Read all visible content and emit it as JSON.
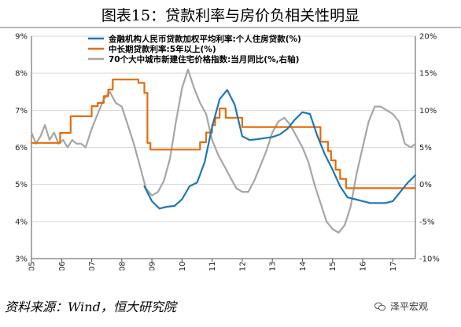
{
  "title": "图表15：贷款利率与房价负相关性明显",
  "source": "资料来源：Wind，恒大研究院",
  "brand": "泽平宏观",
  "chart_data": {
    "type": "line",
    "x_range": [
      2005.0,
      2017.75
    ],
    "x_ticks": [
      2005,
      2006,
      2007,
      2008,
      2009,
      2010,
      2011,
      2012,
      2013,
      2014,
      2015,
      2016,
      2017
    ],
    "y_left": {
      "range": [
        3,
        9
      ],
      "ticks": [
        3,
        4,
        5,
        6,
        7,
        8,
        9
      ],
      "tick_labels": [
        "3%",
        "4%",
        "5%",
        "6%",
        "7%",
        "8%",
        "9%"
      ]
    },
    "y_right": {
      "range": [
        -10,
        20
      ],
      "ticks": [
        -10,
        -5,
        0,
        5,
        10,
        15,
        20
      ],
      "tick_labels": [
        "-10%",
        "-5%",
        "0%",
        "5%",
        "10%",
        "15%",
        "20%"
      ]
    },
    "legend_position": "top",
    "series": [
      {
        "name": "金融机构人民币贷款加权平均利率:个人住房贷款(%)",
        "axis": "left",
        "color": "#1f77b4",
        "x": [
          2008.75,
          2009.0,
          2009.25,
          2009.5,
          2009.75,
          2010.0,
          2010.25,
          2010.5,
          2010.75,
          2011.0,
          2011.25,
          2011.5,
          2011.75,
          2012.0,
          2012.25,
          2012.5,
          2012.75,
          2013.0,
          2013.25,
          2013.5,
          2013.75,
          2014.0,
          2014.25,
          2014.5,
          2014.75,
          2015.0,
          2015.25,
          2015.5,
          2015.75,
          2016.0,
          2016.25,
          2016.5,
          2016.75,
          2017.0,
          2017.25,
          2017.5,
          2017.75
        ],
        "y": [
          4.95,
          4.55,
          4.35,
          4.4,
          4.42,
          4.6,
          4.95,
          5.05,
          5.6,
          6.55,
          7.3,
          7.55,
          7.15,
          6.3,
          6.2,
          6.22,
          6.25,
          6.28,
          6.35,
          6.5,
          6.75,
          6.95,
          6.9,
          6.3,
          5.8,
          5.4,
          4.95,
          4.65,
          4.6,
          4.55,
          4.5,
          4.5,
          4.5,
          4.55,
          4.8,
          5.05,
          5.25
        ]
      },
      {
        "name": "中长期贷款利率:5年以上(%)",
        "axis": "left",
        "color": "#e46c0a",
        "x": [
          2005.0,
          2005.6,
          2005.6,
          2005.95,
          2005.95,
          2006.3,
          2006.3,
          2006.65,
          2006.65,
          2007.0,
          2007.0,
          2007.2,
          2007.2,
          2007.4,
          2007.4,
          2007.55,
          2007.55,
          2007.7,
          2007.7,
          2008.2,
          2008.2,
          2008.55,
          2008.55,
          2008.75,
          2008.75,
          2008.85,
          2008.85,
          2008.95,
          2008.95,
          2010.6,
          2010.6,
          2010.8,
          2010.8,
          2011.0,
          2011.0,
          2011.1,
          2011.1,
          2011.25,
          2011.25,
          2011.45,
          2011.45,
          2012.0,
          2012.0,
          2012.45,
          2012.45,
          2012.6,
          2012.6,
          2014.6,
          2014.6,
          2014.85,
          2014.85,
          2014.95,
          2014.95,
          2015.1,
          2015.1,
          2015.25,
          2015.25,
          2015.45,
          2015.45,
          2015.6,
          2015.6,
          2015.8,
          2015.8,
          2017.75
        ],
        "y": [
          6.12,
          6.12,
          6.12,
          6.12,
          6.39,
          6.39,
          6.84,
          6.84,
          6.84,
          6.84,
          7.11,
          7.11,
          7.2,
          7.2,
          7.38,
          7.38,
          7.56,
          7.56,
          7.83,
          7.83,
          7.83,
          7.83,
          7.74,
          7.74,
          7.47,
          7.47,
          6.12,
          6.12,
          5.94,
          5.94,
          6.14,
          6.14,
          6.4,
          6.4,
          6.6,
          6.6,
          6.8,
          6.8,
          7.05,
          7.05,
          6.8,
          6.8,
          6.55,
          6.55,
          6.55,
          6.55,
          6.55,
          6.55,
          6.15,
          6.15,
          5.9,
          5.9,
          5.65,
          5.65,
          5.4,
          5.4,
          5.15,
          5.15,
          4.9,
          4.9,
          4.9,
          4.9,
          4.9,
          4.9
        ]
      },
      {
        "name": "70个大中城市新建住宅价格指数:当月同比(%,右轴)",
        "axis": "right",
        "color": "#a6a6a6",
        "x": [
          2005.0,
          2005.15,
          2005.3,
          2005.45,
          2005.6,
          2005.75,
          2005.9,
          2006.05,
          2006.2,
          2006.35,
          2006.5,
          2006.65,
          2006.8,
          2007.0,
          2007.2,
          2007.4,
          2007.6,
          2007.8,
          2008.0,
          2008.2,
          2008.4,
          2008.6,
          2008.8,
          2009.0,
          2009.2,
          2009.4,
          2009.6,
          2009.8,
          2010.0,
          2010.2,
          2010.4,
          2010.6,
          2010.8,
          2011.0,
          2011.2,
          2011.4,
          2011.6,
          2011.8,
          2012.0,
          2012.2,
          2012.4,
          2012.6,
          2012.8,
          2013.0,
          2013.2,
          2013.4,
          2013.6,
          2013.8,
          2014.0,
          2014.2,
          2014.4,
          2014.6,
          2014.8,
          2015.0,
          2015.2,
          2015.4,
          2015.6,
          2015.8,
          2016.0,
          2016.2,
          2016.4,
          2016.6,
          2016.8,
          2017.0,
          2017.2,
          2017.4,
          2017.6,
          2017.75
        ],
        "y": [
          7.0,
          5.5,
          6.5,
          8.0,
          6.0,
          7.0,
          5.5,
          6.0,
          5.0,
          6.0,
          5.5,
          5.5,
          5.0,
          7.5,
          9.5,
          11.5,
          12.5,
          11.0,
          10.5,
          8.0,
          5.5,
          2.5,
          -0.5,
          -1.5,
          -1.0,
          0.5,
          3.5,
          8.5,
          13.0,
          15.5,
          13.0,
          11.0,
          9.5,
          6.0,
          4.0,
          2.5,
          1.0,
          -0.5,
          -1.0,
          -1.0,
          0.5,
          2.5,
          4.5,
          7.0,
          8.5,
          9.0,
          8.0,
          6.5,
          5.0,
          3.0,
          0.0,
          -2.5,
          -5.0,
          -6.0,
          -6.5,
          -5.5,
          -3.0,
          1.5,
          5.0,
          8.5,
          10.5,
          10.5,
          10.0,
          9.5,
          8.5,
          5.5,
          5.0,
          5.5
        ]
      }
    ]
  }
}
